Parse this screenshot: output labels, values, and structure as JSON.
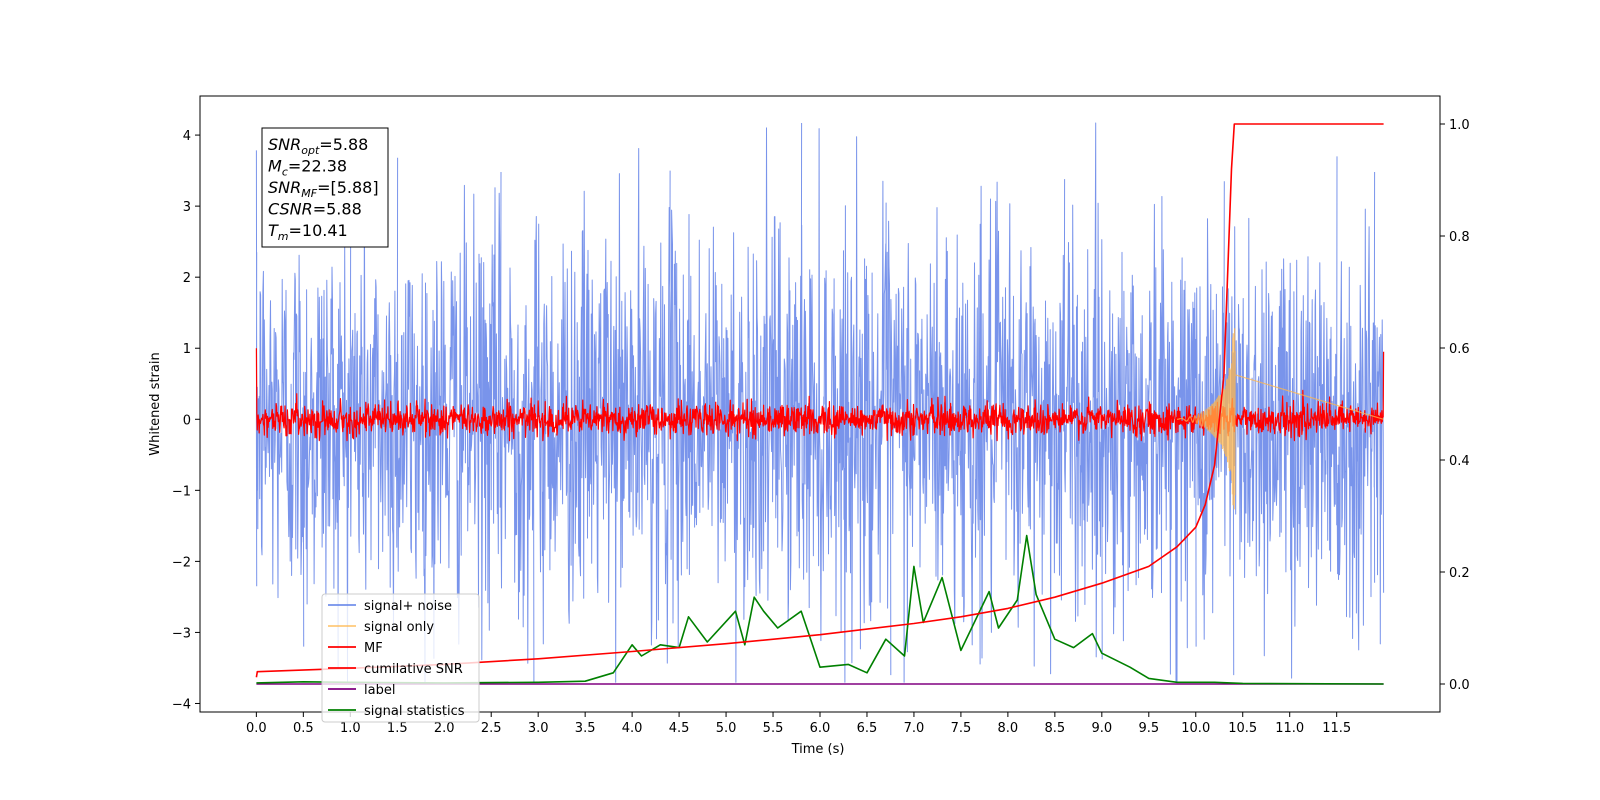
{
  "chart_data": {
    "type": "line",
    "xlabel": "Time (s)",
    "ylabel": "Whitened strain",
    "xlim": [
      -0.6,
      12.6
    ],
    "ylim": [
      -4.12,
      4.55
    ],
    "ylim_right": [
      -0.05,
      1.05
    ],
    "x_ticks": [
      0.0,
      0.5,
      1.0,
      1.5,
      2.0,
      2.5,
      3.0,
      3.5,
      4.0,
      4.5,
      5.0,
      5.5,
      6.0,
      6.5,
      7.0,
      7.5,
      8.0,
      8.5,
      9.0,
      9.5,
      10.0,
      10.5,
      11.0,
      11.5
    ],
    "x_tick_labels": [
      "0.0",
      "0.5",
      "1.0",
      "1.5",
      "2.0",
      "2.5",
      "3.0",
      "3.5",
      "4.0",
      "4.5",
      "5.0",
      "5.5",
      "6.0",
      "6.5",
      "7.0",
      "7.5",
      "8.0",
      "8.5",
      "9.0",
      "9.5",
      "10.0",
      "10.5",
      "11.0",
      "11.5"
    ],
    "y_ticks": [
      -4,
      -3,
      -2,
      -1,
      0,
      1,
      2,
      3,
      4
    ],
    "y_tick_labels": [
      "−4",
      "−3",
      "−2",
      "−1",
      "0",
      "1",
      "2",
      "3",
      "4"
    ],
    "y_ticks_right": [
      0.0,
      0.2,
      0.4,
      0.6,
      0.8,
      1.0
    ],
    "y_tick_labels_right": [
      "0.0",
      "0.2",
      "0.4",
      "0.6",
      "0.8",
      "1.0"
    ],
    "grid": false,
    "legend_position": "bottom-left",
    "annotation": {
      "lines": [
        {
          "base": "SNR",
          "sub": "opt",
          "value": "=5.88"
        },
        {
          "base": "M",
          "sub": "c",
          "value": "=22.38"
        },
        {
          "base": "SNR",
          "sub": "MF",
          "value": "=[5.88]"
        },
        {
          "base": "CSNR",
          "sub": "",
          "value": "=5.88"
        },
        {
          "base": "T",
          "sub": "m",
          "value": "=10.41"
        }
      ]
    },
    "noise_envelope": {
      "typical_amplitude": 2.2,
      "max": 4.17,
      "min": -3.7,
      "t_start": 0.0,
      "t_end": 12.0
    },
    "series": [
      {
        "name": "signal+ noise",
        "axis": "left",
        "color": "#5b7de6",
        "peaks": [
          [
            0.0,
            2.35
          ],
          [
            1.0,
            3.05
          ],
          [
            1.5,
            3.68
          ],
          [
            2.6,
            3.48
          ],
          [
            4.4,
            3.5
          ],
          [
            5.8,
            4.17
          ],
          [
            6.7,
            3.05
          ],
          [
            8.6,
            3.38
          ],
          [
            10.3,
            3.35
          ],
          [
            11.5,
            3.7
          ],
          [
            11.9,
            3.48
          ]
        ],
        "troughs": [
          [
            0.0,
            -2.35
          ],
          [
            0.5,
            -3.2
          ],
          [
            2.95,
            -3.7
          ],
          [
            6.75,
            -3.6
          ],
          [
            7.7,
            -3.45
          ],
          [
            9.0,
            -3.38
          ],
          [
            10.0,
            -3.2
          ],
          [
            10.4,
            -3.6
          ],
          [
            11.9,
            -2.3
          ]
        ]
      },
      {
        "name": "signal only",
        "axis": "left",
        "color": "#ffb74d",
        "points": [
          [
            9.8,
            0.0
          ],
          [
            10.0,
            0.05
          ],
          [
            10.1,
            0.12
          ],
          [
            10.2,
            0.25
          ],
          [
            10.3,
            0.45
          ],
          [
            10.35,
            0.65
          ],
          [
            10.4,
            1.25
          ],
          [
            10.41,
            -1.3
          ],
          [
            10.42,
            0.0
          ],
          [
            12.0,
            0.0
          ]
        ]
      },
      {
        "name": "MF",
        "axis": "left",
        "color": "#ff0000",
        "typical_amplitude": 0.25,
        "max": 0.55,
        "min": -0.3,
        "start_value": 1.0,
        "end_value": 0.95
      },
      {
        "name": "cumilative SNR",
        "axis": "right",
        "color": "#ff0000",
        "points": [
          [
            0.0,
            0.012
          ],
          [
            0.01,
            0.022
          ],
          [
            1.0,
            0.028
          ],
          [
            2.0,
            0.035
          ],
          [
            3.0,
            0.045
          ],
          [
            4.0,
            0.058
          ],
          [
            5.0,
            0.072
          ],
          [
            6.0,
            0.088
          ],
          [
            7.0,
            0.108
          ],
          [
            7.5,
            0.12
          ],
          [
            8.0,
            0.135
          ],
          [
            8.5,
            0.155
          ],
          [
            9.0,
            0.18
          ],
          [
            9.5,
            0.21
          ],
          [
            9.8,
            0.245
          ],
          [
            10.0,
            0.28
          ],
          [
            10.1,
            0.32
          ],
          [
            10.2,
            0.39
          ],
          [
            10.3,
            0.55
          ],
          [
            10.38,
            0.92
          ],
          [
            10.41,
            1.0
          ],
          [
            12.0,
            1.0
          ]
        ]
      },
      {
        "name": "label",
        "axis": "right",
        "color": "#800080",
        "points": [
          [
            0.0,
            0.0
          ],
          [
            12.0,
            0.0
          ]
        ]
      },
      {
        "name": "signal statistics",
        "axis": "right",
        "color": "#008000",
        "points": [
          [
            0.0,
            0.002
          ],
          [
            0.5,
            0.004
          ],
          [
            1.0,
            0.003
          ],
          [
            2.0,
            0.002
          ],
          [
            3.0,
            0.003
          ],
          [
            3.5,
            0.005
          ],
          [
            3.8,
            0.02
          ],
          [
            4.0,
            0.07
          ],
          [
            4.1,
            0.05
          ],
          [
            4.3,
            0.07
          ],
          [
            4.5,
            0.065
          ],
          [
            4.6,
            0.12
          ],
          [
            4.8,
            0.075
          ],
          [
            5.1,
            0.13
          ],
          [
            5.2,
            0.07
          ],
          [
            5.3,
            0.155
          ],
          [
            5.4,
            0.13
          ],
          [
            5.55,
            0.1
          ],
          [
            5.8,
            0.13
          ],
          [
            6.0,
            0.03
          ],
          [
            6.3,
            0.035
          ],
          [
            6.5,
            0.02
          ],
          [
            6.7,
            0.08
          ],
          [
            6.9,
            0.05
          ],
          [
            7.0,
            0.21
          ],
          [
            7.1,
            0.11
          ],
          [
            7.3,
            0.19
          ],
          [
            7.5,
            0.06
          ],
          [
            7.8,
            0.165
          ],
          [
            7.9,
            0.1
          ],
          [
            8.1,
            0.15
          ],
          [
            8.2,
            0.265
          ],
          [
            8.3,
            0.16
          ],
          [
            8.5,
            0.08
          ],
          [
            8.7,
            0.065
          ],
          [
            8.9,
            0.09
          ],
          [
            9.0,
            0.055
          ],
          [
            9.3,
            0.03
          ],
          [
            9.5,
            0.01
          ],
          [
            9.8,
            0.003
          ],
          [
            10.2,
            0.003
          ],
          [
            10.5,
            0.001
          ],
          [
            12.0,
            0.0
          ]
        ]
      }
    ]
  }
}
